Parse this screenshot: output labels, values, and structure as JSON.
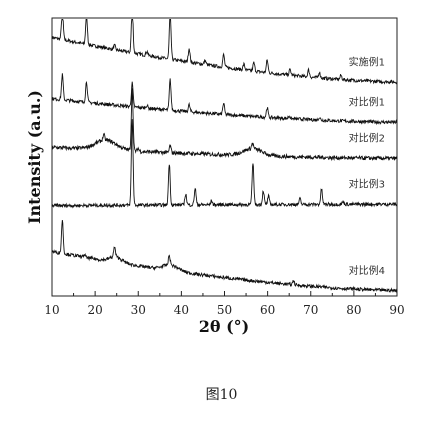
{
  "caption": "图10",
  "chart_data": {
    "type": "line",
    "xlabel": "2θ (°)",
    "ylabel": "Intensity (a.u.)",
    "xlim": [
      10,
      90
    ],
    "xticks": [
      10,
      20,
      30,
      40,
      50,
      60,
      70,
      80,
      90
    ],
    "y_ticks_shown": false,
    "grid": false,
    "legend": "none",
    "series": [
      {
        "name": "实施例1",
        "color": "#111111",
        "baseline_start": 0.93,
        "baseline_end": 0.77,
        "noise": 0.006,
        "peaks": [
          [
            12.4,
            0.11
          ],
          [
            18.0,
            0.11
          ],
          [
            24.5,
            0.015
          ],
          [
            28.6,
            0.17
          ],
          [
            32.0,
            0.015
          ],
          [
            37.4,
            0.17
          ],
          [
            41.8,
            0.05
          ],
          [
            45.5,
            0.015
          ],
          [
            49.8,
            0.045
          ],
          [
            54.5,
            0.02
          ],
          [
            56.8,
            0.03
          ],
          [
            59.9,
            0.045
          ],
          [
            65.2,
            0.02
          ],
          [
            69.5,
            0.025
          ],
          [
            72.0,
            0.02
          ],
          [
            77.0,
            0.015
          ]
        ]
      },
      {
        "name": "对比例1",
        "color": "#111111",
        "baseline_start": 0.71,
        "baseline_end": 0.625,
        "noise": 0.006,
        "peaks": [
          [
            12.4,
            0.09
          ],
          [
            18.0,
            0.075
          ],
          [
            28.6,
            0.085
          ],
          [
            32.0,
            0.01
          ],
          [
            37.4,
            0.11
          ],
          [
            41.8,
            0.025
          ],
          [
            49.8,
            0.04
          ],
          [
            59.9,
            0.035
          ],
          [
            65.0,
            0.01
          ],
          [
            72.0,
            0.01
          ]
        ]
      },
      {
        "name": "对比例2",
        "color": "#111111",
        "baseline_start": 0.535,
        "baseline_end": 0.495,
        "noise": 0.007,
        "peaks": [
          [
            22.0,
            0.02
          ],
          [
            28.6,
            0.22
          ],
          [
            30.0,
            0.01
          ],
          [
            37.4,
            0.025
          ],
          [
            56.5,
            0.02
          ]
        ],
        "humps": [
          [
            22.5,
            0.035,
            3.5
          ],
          [
            56.5,
            0.025,
            3.0
          ]
        ]
      },
      {
        "name": "对比例3",
        "color": "#111111",
        "baseline_start": 0.325,
        "baseline_end": 0.33,
        "noise": 0.006,
        "peaks": [
          [
            28.6,
            0.31
          ],
          [
            37.2,
            0.15
          ],
          [
            41.0,
            0.04
          ],
          [
            43.2,
            0.06
          ],
          [
            47.0,
            0.015
          ],
          [
            56.6,
            0.15
          ],
          [
            59.0,
            0.05
          ],
          [
            60.2,
            0.03
          ],
          [
            67.5,
            0.02
          ],
          [
            72.5,
            0.055
          ],
          [
            77.5,
            0.01
          ]
        ]
      },
      {
        "name": "对比例4",
        "color": "#111111",
        "baseline_start": 0.16,
        "baseline_end": 0.02,
        "noise": 0.006,
        "peaks": [
          [
            12.4,
            0.12
          ],
          [
            17.5,
            0.01
          ],
          [
            24.5,
            0.035
          ],
          [
            37.2,
            0.035
          ],
          [
            66.0,
            0.015
          ]
        ],
        "humps": [
          [
            24.8,
            0.02,
            2.0
          ],
          [
            37.5,
            0.02,
            2.5
          ]
        ]
      }
    ]
  }
}
